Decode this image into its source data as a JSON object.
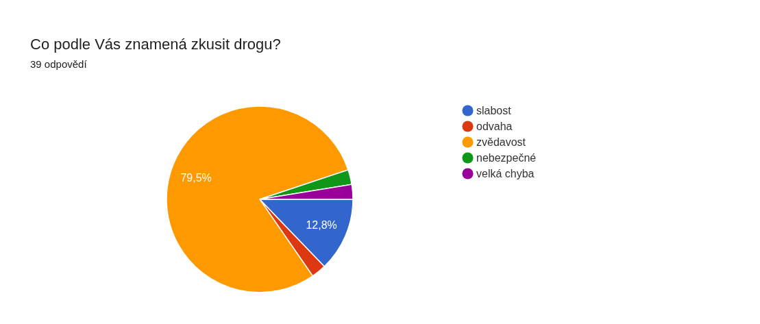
{
  "chart_data": {
    "type": "pie",
    "title": "Co podle Vás znamená zkusit drogu?",
    "subtitle": "39 odpovědí",
    "categories": [
      "slabost",
      "odvaha",
      "zvědavost",
      "nebezpečné",
      "velká chyba"
    ],
    "values": [
      12.82,
      2.56,
      79.49,
      2.56,
      2.57
    ],
    "colors": [
      "#3366cc",
      "#dc3912",
      "#ff9900",
      "#109618",
      "#990099"
    ],
    "value_labels": [
      "12,8%",
      null,
      "79,5%",
      null,
      null
    ],
    "legend": "right"
  }
}
